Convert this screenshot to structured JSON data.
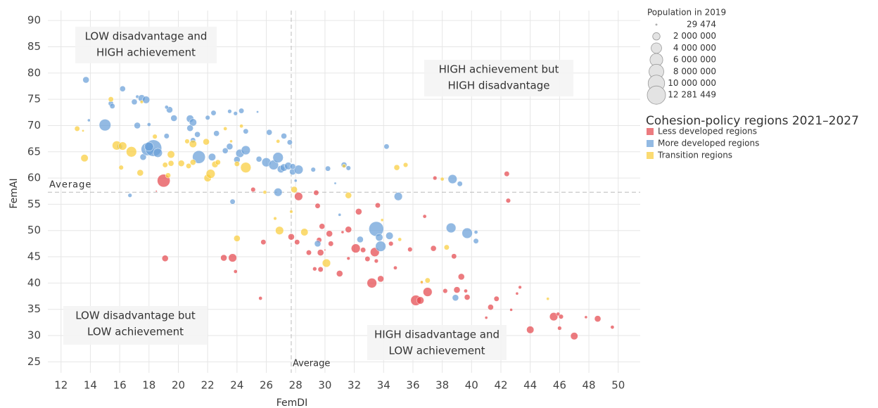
{
  "chart_data": {
    "type": "scatter",
    "x_label": "FemDI",
    "y_label": "FemAI",
    "xlim": [
      11.1,
      51.5
    ],
    "ylim": [
      22.9,
      91.9
    ],
    "xticks": [
      12,
      14,
      16,
      18,
      20,
      22,
      24,
      26,
      28,
      30,
      32,
      34,
      36,
      38,
      40,
      42,
      44,
      46,
      48,
      50
    ],
    "yticks": [
      25,
      30,
      35,
      40,
      45,
      50,
      55,
      60,
      65,
      70,
      75,
      80,
      85,
      90
    ],
    "grid": true,
    "reference_lines": [
      {
        "axis": "x",
        "value": 27.7,
        "label": "Average"
      },
      {
        "axis": "y",
        "value": 57.3,
        "label": "Average"
      }
    ],
    "annotations": [
      {
        "lines": [
          "LOW disadvantage and",
          "HIGH achievement"
        ]
      },
      {
        "lines": [
          "HIGH achievement but",
          "HIGH disadvantage"
        ]
      },
      {
        "lines": [
          "LOW disadvantage but",
          "LOW achievement"
        ]
      },
      {
        "lines": [
          "HIGH disadvantage and",
          "LOW achievement"
        ]
      }
    ],
    "size_legend": {
      "title": "Population in 2019",
      "values": [
        {
          "value": 29474,
          "label": "29 474"
        },
        {
          "value": 2000000,
          "label": "2 000 000"
        },
        {
          "value": 4000000,
          "label": "4 000 000"
        },
        {
          "value": 6000000,
          "label": "6 000 000"
        },
        {
          "value": 8000000,
          "label": "8 000 000"
        },
        {
          "value": 10000000,
          "label": "10 000 000"
        },
        {
          "value": 12281449,
          "label": "12 281 449"
        }
      ]
    },
    "legend_title": "Cohesion-policy regions 2021–2027",
    "series": [
      {
        "name": "Less developed regions",
        "color": "#e5484d",
        "x": [
          19,
          19.1,
          18.5,
          23.1,
          23.7,
          23.9,
          25.1,
          25.8,
          25.6,
          27.7,
          28.1,
          28.2,
          28.9,
          29.3,
          29.4,
          29.5,
          29.6,
          29.7,
          29.8,
          29.7,
          30.3,
          30.4,
          31,
          31.6,
          31.6,
          32.1,
          32.3,
          32.6,
          32.9,
          33.2,
          33.4,
          33.5,
          33.8,
          33.6,
          34.5,
          34.8,
          35.8,
          36.2,
          36.5,
          36.6,
          36.8,
          37,
          37.4,
          37.5,
          38.2,
          38.8,
          39,
          39.3,
          39.7,
          39.6,
          41.3,
          41.7,
          42.4,
          42.5,
          42.7,
          43.1,
          43.3,
          44,
          45.6,
          45.9,
          46.1,
          46,
          47,
          47.8,
          48.6,
          49.6,
          30,
          31.2,
          41
        ],
        "y": [
          59.5,
          44.7,
          57.5,
          44.8,
          44.8,
          42.2,
          57.8,
          47.8,
          37.1,
          48.8,
          47.8,
          56.5,
          45.8,
          42.7,
          57.2,
          54.7,
          48.2,
          45.8,
          50.8,
          42.6,
          49.4,
          47.5,
          41.8,
          50.2,
          44.7,
          46.6,
          53.6,
          46.3,
          44.6,
          40,
          45.9,
          44.2,
          40.8,
          54.8,
          47.5,
          42.9,
          46.4,
          36.7,
          36.7,
          40.1,
          52.7,
          38.3,
          46.6,
          60,
          38.5,
          45.1,
          38.7,
          41.2,
          37.3,
          38.5,
          35.4,
          37,
          60.8,
          55.7,
          34.9,
          38,
          39.2,
          31.1,
          33.6,
          34.1,
          33.6,
          31.4,
          29.9,
          33.5,
          33.2,
          31.6,
          46.3,
          49.7,
          33.4
        ],
        "sizes": [
          6000000,
          1500000,
          100000,
          1500000,
          2500000,
          500000,
          800000,
          1000000,
          500000,
          1500000,
          1000000,
          2500000,
          1000000,
          600000,
          1000000,
          1000000,
          1000000,
          1500000,
          1200000,
          1000000,
          1500000,
          1000000,
          1500000,
          1500000,
          400000,
          3000000,
          1500000,
          1000000,
          1000000,
          3500000,
          3000000,
          600000,
          1500000,
          1000000,
          800000,
          500000,
          800000,
          4000000,
          2000000,
          300000,
          500000,
          3000000,
          1200000,
          600000,
          800000,
          1000000,
          1500000,
          1500000,
          1200000,
          500000,
          1200000,
          1000000,
          1000000,
          800000,
          300000,
          300000,
          400000,
          2000000,
          2500000,
          500000,
          800000,
          600000,
          2000000,
          300000,
          1500000,
          500000,
          100000,
          300000,
          300000
        ]
      },
      {
        "name": "More developed regions",
        "color": "#6a9fd8",
        "x": [
          13.7,
          13.9,
          15,
          15.4,
          15.5,
          16.2,
          16,
          17,
          17.2,
          17.5,
          17.8,
          17.2,
          17.6,
          17.9,
          18.3,
          18.6,
          18,
          18,
          19.4,
          19.2,
          19.7,
          19.2,
          20.8,
          21,
          20.8,
          21.3,
          21,
          21.4,
          22,
          22.4,
          22.6,
          22.3,
          23.2,
          23.5,
          23.9,
          24.3,
          23.5,
          24.2,
          24,
          24.6,
          25.4,
          24.6,
          25.5,
          26,
          26.2,
          26.5,
          26.8,
          27,
          27.2,
          27.5,
          27.2,
          27.6,
          27.8,
          28.2,
          27.8,
          29.2,
          30.2,
          31.3,
          31.6,
          34.2,
          33.5,
          33.8,
          33.7,
          34.4,
          31,
          29.5,
          32.4,
          35,
          38.6,
          38.7,
          39.2,
          39.7,
          40.3,
          40.3,
          38.9,
          16.7,
          23.7,
          26.8,
          28,
          30.7
        ],
        "y": [
          78.7,
          71,
          70.1,
          74.2,
          73.7,
          77,
          66,
          74.5,
          75.5,
          75.2,
          74.9,
          70,
          64,
          65.5,
          65.7,
          64.8,
          70.2,
          66,
          73,
          73.5,
          71.4,
          68,
          71.3,
          70.6,
          69.5,
          68.3,
          67.2,
          64,
          71.5,
          72.4,
          68.5,
          64,
          65.2,
          72.7,
          72.3,
          72.8,
          66,
          64.7,
          63.5,
          65.3,
          72.6,
          68.9,
          63.6,
          63,
          68.7,
          62.5,
          63.9,
          61.7,
          62,
          62.3,
          68,
          66.8,
          61.2,
          61.6,
          62.2,
          61.6,
          61.8,
          62.5,
          61.9,
          66,
          50.3,
          47,
          48.7,
          49,
          53,
          47.5,
          48.3,
          56.5,
          50.5,
          59.8,
          58.9,
          49.5,
          48,
          49.7,
          37.2,
          56.7,
          55.5,
          57.3,
          59.5,
          59
        ],
        "sizes": [
          1500000,
          300000,
          5000000,
          1000000,
          1000000,
          1200000,
          1000000,
          1200000,
          400000,
          1800000,
          2000000,
          1500000,
          1500000,
          6000000,
          10000000,
          3000000,
          500000,
          3000000,
          1500000,
          500000,
          1500000,
          1000000,
          2000000,
          2000000,
          1500000,
          1200000,
          1000000,
          6000000,
          800000,
          1000000,
          1200000,
          2000000,
          1200000,
          600000,
          600000,
          1000000,
          1500000,
          2500000,
          1500000,
          3000000,
          200000,
          1000000,
          1200000,
          3000000,
          1200000,
          3500000,
          4000000,
          2000000,
          2000000,
          2000000,
          1200000,
          1000000,
          1500000,
          3000000,
          1200000,
          800000,
          1000000,
          1200000,
          800000,
          1000000,
          8000000,
          4000000,
          2000000,
          2000000,
          300000,
          1500000,
          1500000,
          2500000,
          3500000,
          3000000,
          1000000,
          4000000,
          1000000,
          500000,
          1500000,
          600000,
          1000000,
          2500000,
          300000,
          200000
        ]
      },
      {
        "name": "Transition regions",
        "color": "#f9cd3c",
        "x": [
          13.1,
          13.5,
          13.6,
          15.4,
          15.8,
          16.2,
          16.1,
          16.8,
          17.4,
          17.5,
          18.4,
          19.1,
          19.5,
          19.5,
          19.3,
          20.2,
          20.7,
          20.6,
          21,
          21.9,
          22,
          22.2,
          22.5,
          22.7,
          23.2,
          23.6,
          24,
          24.6,
          24.3,
          25.9,
          26.8,
          26.6,
          26.9,
          27.9,
          27.7,
          28.6,
          30.1,
          31.3,
          31.6,
          33.9,
          34.9,
          35.5,
          35.1,
          36.6,
          37,
          38,
          38.3,
          45.2,
          24,
          21
        ],
        "y": [
          69.4,
          69,
          63.8,
          75,
          66.2,
          66.1,
          62,
          65,
          61,
          74.5,
          67.9,
          62.5,
          64.5,
          62.8,
          60.5,
          62.8,
          62.3,
          67,
          66.5,
          66.9,
          60,
          60.8,
          62.6,
          63,
          69.4,
          67,
          62.7,
          62,
          69.9,
          57.3,
          67,
          52.3,
          50,
          57.8,
          53.6,
          49.7,
          43.8,
          62.3,
          56.7,
          52,
          62,
          62.5,
          48.3,
          40.2,
          40.5,
          59.8,
          46.8,
          37,
          48.5,
          63
        ],
        "sizes": [
          1000000,
          200000,
          2000000,
          1000000,
          3000000,
          2500000,
          800000,
          4000000,
          1500000,
          400000,
          800000,
          1000000,
          2000000,
          1200000,
          1000000,
          1500000,
          1000000,
          800000,
          2000000,
          1500000,
          2000000,
          3000000,
          1500000,
          1000000,
          500000,
          300000,
          1000000,
          4000000,
          500000,
          500000,
          500000,
          400000,
          2500000,
          1500000,
          400000,
          2000000,
          2500000,
          500000,
          1500000,
          300000,
          1200000,
          800000,
          500000,
          300000,
          1000000,
          500000,
          1000000,
          300000,
          1500000,
          1200000
        ]
      }
    ]
  }
}
